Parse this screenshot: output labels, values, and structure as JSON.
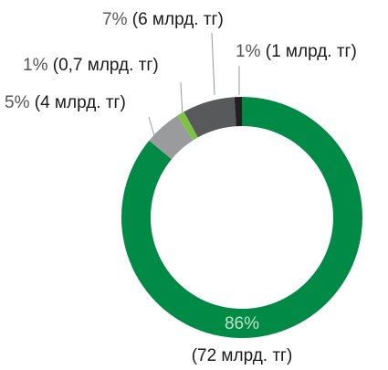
{
  "chart_data": {
    "type": "donut",
    "values": [
      86,
      5,
      1,
      7,
      1
    ],
    "value_labels": [
      "86%",
      "5%",
      "1%",
      "7%",
      "1%"
    ],
    "amount_labels": [
      "(72 млрд. тг)",
      "(4 млрд. тг)",
      "(0,7 млрд. тг)",
      "(6 млрд. тг)",
      "(1 млрд. тг)"
    ],
    "colors": [
      "#008a45",
      "#9a9b9d",
      "#7dc242",
      "#58595b",
      "#231f20"
    ]
  }
}
